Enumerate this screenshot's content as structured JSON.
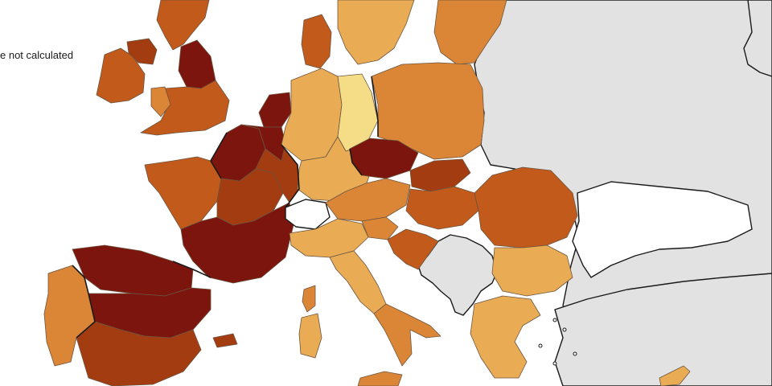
{
  "legend": {
    "partial_label": "e not calculated"
  },
  "palette": {
    "sea": "#ffffff",
    "non_eu_land": "#e2e2e2",
    "not_calculated": "#ffffff",
    "level_1": "#f5dc87",
    "level_2": "#e9ac55",
    "level_3": "#db8636",
    "level_4": "#c15a1b",
    "level_5": "#a33c10",
    "level_6": "#7b150d"
  },
  "regions": [
    {
      "name": "Ireland",
      "level": 4
    },
    {
      "name": "Northern Ireland",
      "level": 5
    },
    {
      "name": "Scotland",
      "level": 4
    },
    {
      "name": "Northern England",
      "level": 6
    },
    {
      "name": "England",
      "level": 4
    },
    {
      "name": "Wales",
      "level": 3
    },
    {
      "name": "France North",
      "level": 6
    },
    {
      "name": "France West",
      "level": 4
    },
    {
      "name": "France Centre",
      "level": 5
    },
    {
      "name": "France East",
      "level": 5
    },
    {
      "name": "France South",
      "level": 6
    },
    {
      "name": "Netherlands",
      "level": 6
    },
    {
      "name": "Belgium",
      "level": 6
    },
    {
      "name": "Germany West",
      "level": 2
    },
    {
      "name": "Germany East",
      "level": 1
    },
    {
      "name": "Germany South",
      "level": 2
    },
    {
      "name": "Switzerland",
      "level": 0
    },
    {
      "name": "Denmark",
      "level": 4
    },
    {
      "name": "Sweden",
      "level": 2
    },
    {
      "name": "Baltic States",
      "level": 3
    },
    {
      "name": "Poland",
      "level": 3
    },
    {
      "name": "Czechia",
      "level": 6
    },
    {
      "name": "Austria",
      "level": 3
    },
    {
      "name": "Slovakia",
      "level": 5
    },
    {
      "name": "Hungary",
      "level": 4
    },
    {
      "name": "Slovenia",
      "level": 3
    },
    {
      "name": "Croatia",
      "level": 4
    },
    {
      "name": "Romania",
      "level": 4
    },
    {
      "name": "Bulgaria",
      "level": 2
    },
    {
      "name": "Greece",
      "level": 2
    },
    {
      "name": "Italy North",
      "level": 2
    },
    {
      "name": "Italy Centre",
      "level": 2
    },
    {
      "name": "Italy South",
      "level": 3
    },
    {
      "name": "Spain North",
      "level": 6
    },
    {
      "name": "Spain Centre",
      "level": 6
    },
    {
      "name": "Spain South",
      "level": 5
    },
    {
      "name": "Portugal",
      "level": 3
    }
  ]
}
